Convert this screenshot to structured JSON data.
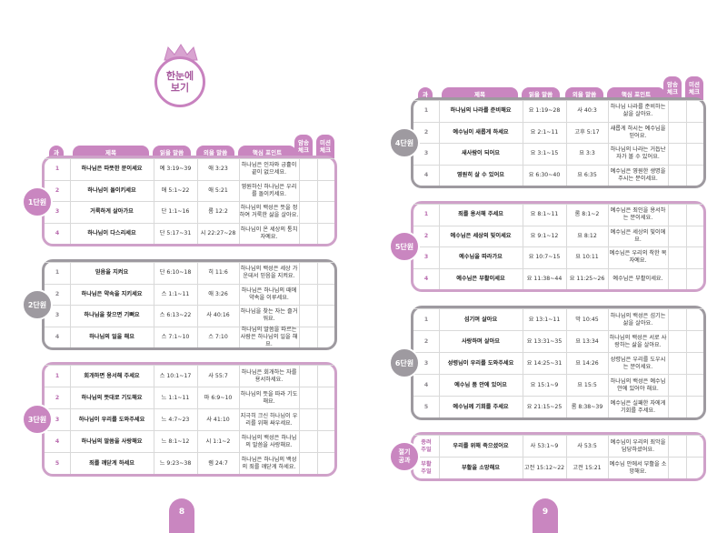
{
  "title": {
    "line1": "한눈에",
    "line2": "보기"
  },
  "header": {
    "num": "과",
    "title": "제목",
    "read": "읽을 말씀",
    "memorize": "외울 말씀",
    "point": "핵심 포인트",
    "check1a": "암송",
    "check1b": "체크",
    "check2a": "미션",
    "check2b": "체크"
  },
  "pages": {
    "left": "8",
    "right": "9"
  },
  "units": [
    {
      "label": "1단원",
      "lessons": [
        {
          "n": "1",
          "title": "하나님은 따뜻한 분이세요",
          "read": "예 3:19~39",
          "mem": "애 3:23",
          "point": "하나님은 인자와 긍휼이 끝이 없으세요."
        },
        {
          "n": "2",
          "title": "하나님이 돌이키세요",
          "read": "애 5:1~22",
          "mem": "애 5:21",
          "point": "영원하신 하나님은 우리를 돌이키세요."
        },
        {
          "n": "3",
          "title": "거룩하게 살아가요",
          "read": "단 1:1~16",
          "mem": "롬 12:2",
          "point": "하나님의 백성은 뜻을 정하여 거룩한 삶을 살아요."
        },
        {
          "n": "4",
          "title": "하나님이 다스리세요",
          "read": "단 5:17~31",
          "mem": "시 22:27~28",
          "point": "하나님이 온 세상의 통치자예요."
        }
      ]
    },
    {
      "label": "2단원",
      "lessons": [
        {
          "n": "1",
          "title": "믿음을 지켜요",
          "read": "단 6:10~18",
          "mem": "히 11:6",
          "point": "하나님의 백성은 세상 가운데서 믿음을 지켜요."
        },
        {
          "n": "2",
          "title": "하나님은 약속을 지키세요",
          "read": "스 1:1~11",
          "mem": "애 3:26",
          "point": "하나님은 하나님의 때에 약속을 이루세요."
        },
        {
          "n": "3",
          "title": "하나님을 찾으면 기뻐요",
          "read": "스 6:13~22",
          "mem": "사 40:16",
          "point": "하나님을 찾는 자는 즐거워요."
        },
        {
          "n": "4",
          "title": "하나님의 일을 해요",
          "read": "스 7:1~10",
          "mem": "스 7:10",
          "point": "하나님의 말씀을 따르는 사람은 하나님의 일을 해요."
        }
      ]
    },
    {
      "label": "3단원",
      "lessons": [
        {
          "n": "1",
          "title": "회개하면 용서해 주세요",
          "read": "스 10:1~17",
          "mem": "사 55:7",
          "point": "하나님은 회개하는 자를 용서하세요."
        },
        {
          "n": "2",
          "title": "하나님의 뜻대로 기도해요",
          "read": "느 1:1~11",
          "mem": "마 6:9~10",
          "point": "하나님의 뜻을 따라 기도해요."
        },
        {
          "n": "3",
          "title": "하나님이 우리를 도와주세요",
          "read": "느 4:7~23",
          "mem": "사 41:10",
          "point": "지극히 크신 하나님이 우리를 위해 싸우세요."
        },
        {
          "n": "4",
          "title": "하나님의 말씀을 사랑해요",
          "read": "느 8:1~12",
          "mem": "시 1:1~2",
          "point": "하나님의 백성은 하나님의 말씀을 사랑해요."
        },
        {
          "n": "5",
          "title": "죄를 깨닫게 하세요",
          "read": "느 9:23~38",
          "mem": "렘 24:7",
          "point": "하나님은 하나님의 백성의 죄를 깨닫게 하세요."
        }
      ]
    },
    {
      "label": "4단원",
      "lessons": [
        {
          "n": "1",
          "title": "하나님의 나라를 준비해요",
          "read": "요 1:19~28",
          "mem": "사 40:3",
          "point": "하나님 나라를 준비하는 삶을 살아요."
        },
        {
          "n": "2",
          "title": "예수님이 새롭게 하세요",
          "read": "요 2:1~11",
          "mem": "고후 5:17",
          "point": "새롭게 하시는 예수님을 믿어요."
        },
        {
          "n": "3",
          "title": "새사람이 되어요",
          "read": "요 3:1~15",
          "mem": "요 3:3",
          "point": "하나님의 나라는 거듭난 자가 볼 수 있어요."
        },
        {
          "n": "4",
          "title": "영원히 살 수 있어요",
          "read": "요 6:30~40",
          "mem": "요 6:35",
          "point": "예수님은 영원한 생명을 주시는 분이세요."
        }
      ]
    },
    {
      "label": "5단원",
      "lessons": [
        {
          "n": "1",
          "title": "죄를 용서해 주세요",
          "read": "요 8:1~11",
          "mem": "롬 8:1~2",
          "point": "예수님은 죄인을 용서하는 분이세요."
        },
        {
          "n": "2",
          "title": "예수님은 세상의 빛이세요",
          "read": "요 9:1~12",
          "mem": "요 8:12",
          "point": "예수님은 세상의 빛이에요."
        },
        {
          "n": "3",
          "title": "예수님을 따라가요",
          "read": "요 10:7~15",
          "mem": "요 10:11",
          "point": "예수님은 우리의 착한 목자예요."
        },
        {
          "n": "4",
          "title": "예수님은 부활이세요",
          "read": "요 11:38~44",
          "mem": "요 11:25~26",
          "point": "예수님은 부활이세요."
        }
      ]
    },
    {
      "label": "6단원",
      "lessons": [
        {
          "n": "1",
          "title": "섬기며 살아요",
          "read": "요 13:1~11",
          "mem": "막 10:45",
          "point": "하나님의 백성은 섬기는 삶을 살아요."
        },
        {
          "n": "2",
          "title": "사랑하며 살아요",
          "read": "요 13:31~35",
          "mem": "요 13:34",
          "point": "하나님의 백성은 서로 사랑하는 삶을 살아요."
        },
        {
          "n": "3",
          "title": "성령님이 우리를 도와주세요",
          "read": "요 14:25~31",
          "mem": "요 14:26",
          "point": "성령님은 우리를 도우시는 분이세요."
        },
        {
          "n": "4",
          "title": "예수님 품 안에 있어요",
          "read": "요 15:1~9",
          "mem": "요 15:5",
          "point": "하나님의 백성은 예수님 안에 있어야 해요."
        },
        {
          "n": "5",
          "title": "예수님께 기회를 주세요",
          "read": "요 21:15~25",
          "mem": "롬 8:38~39",
          "point": "예수님은 실패한 자에게 기회를 주세요."
        }
      ]
    },
    {
      "label1": "절기",
      "label2": "공과",
      "lessons": [
        {
          "n1": "종려",
          "n2": "주일",
          "title": "우리를 위해 죽으셨어요",
          "read": "사 53:1~9",
          "mem": "사 53:5",
          "point": "예수님이 우리의 죄악을 담당하셨어요."
        },
        {
          "n1": "부활",
          "n2": "주일",
          "title": "부활을 소망해요",
          "read": "고전 15:12~22",
          "mem": "고전 15:21",
          "point": "예수님 안에서 부활을 소망해요."
        }
      ]
    }
  ]
}
